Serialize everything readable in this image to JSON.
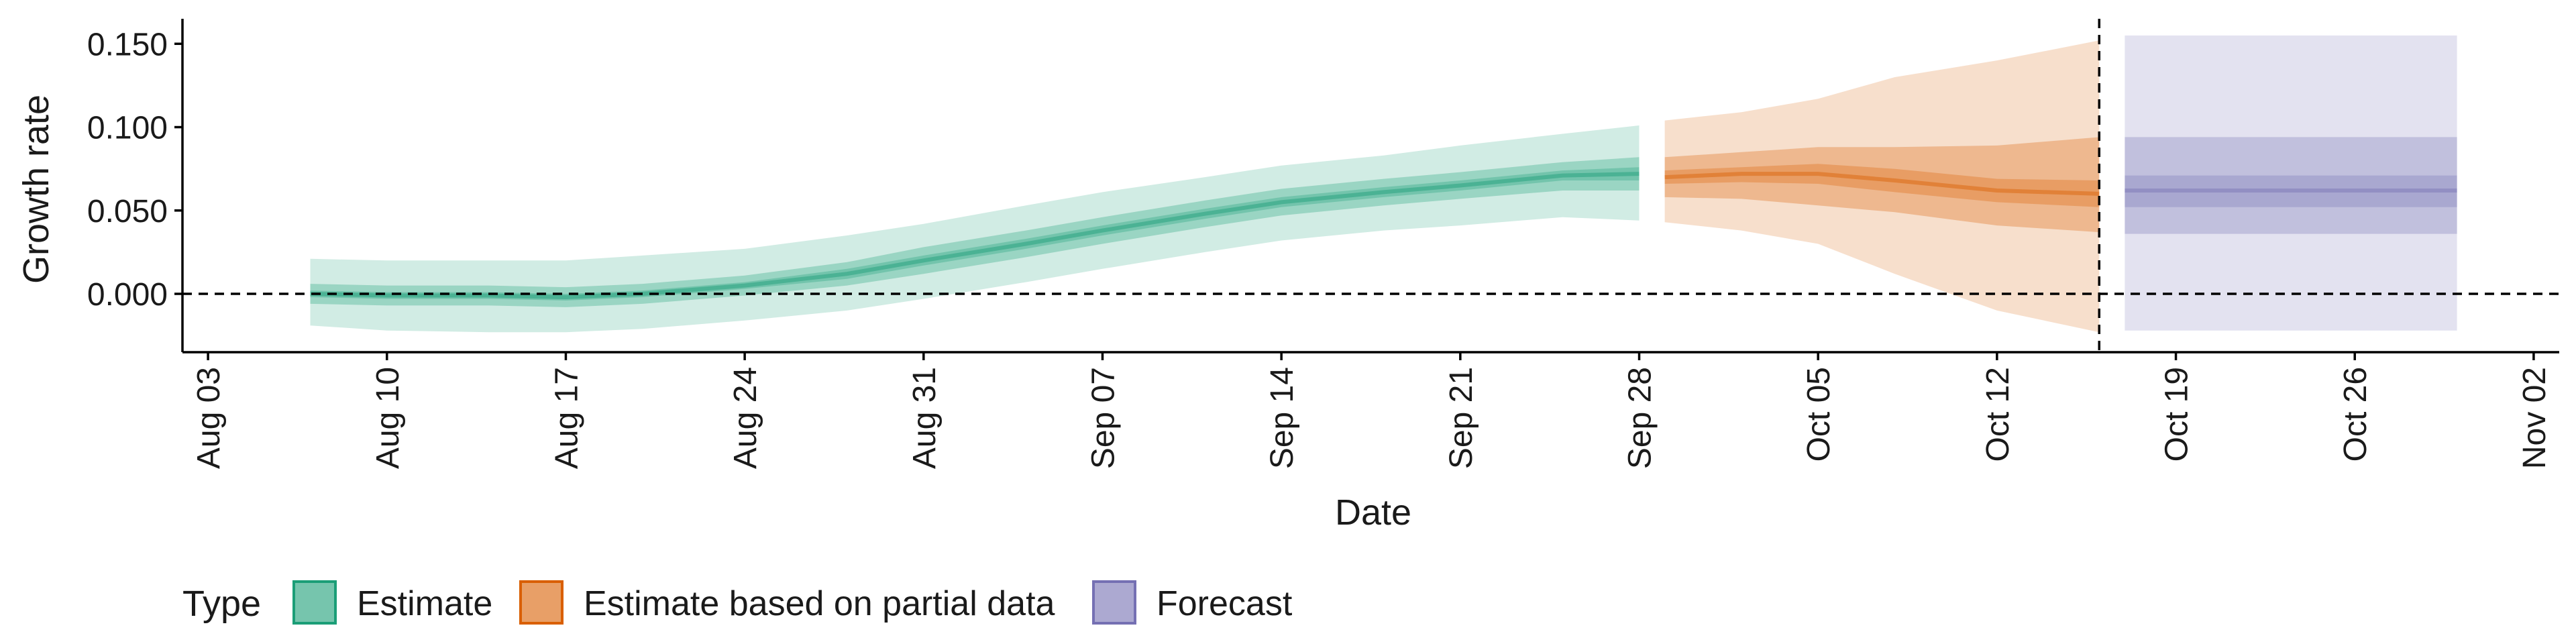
{
  "chart_data": {
    "type": "area",
    "xlabel": "Date",
    "ylabel": "Growth rate",
    "x_range": [
      "2020-08-02",
      "2020-11-03"
    ],
    "ylim": [
      -0.035,
      0.165
    ],
    "y_ticks": [
      0.0,
      0.05,
      0.1,
      0.15
    ],
    "y_tick_labels": [
      "0.000",
      "0.050",
      "0.100",
      "0.150"
    ],
    "x_ticks": [
      "2020-08-03",
      "2020-08-10",
      "2020-08-17",
      "2020-08-24",
      "2020-08-31",
      "2020-09-07",
      "2020-09-14",
      "2020-09-21",
      "2020-09-28",
      "2020-10-05",
      "2020-10-12",
      "2020-10-19",
      "2020-10-26",
      "2020-11-02"
    ],
    "x_tick_labels": [
      "Aug 03",
      "Aug 10",
      "Aug 17",
      "Aug 24",
      "Aug 31",
      "Sep 07",
      "Sep 14",
      "Sep 21",
      "Sep 28",
      "Oct 05",
      "Oct 12",
      "Oct 19",
      "Oct 26",
      "Nov 02"
    ],
    "reference_lines": {
      "horizontal_y": 0.0,
      "vertical_date": "2020-10-16"
    },
    "grid": false,
    "legend": {
      "title": "Type",
      "position": "bottom",
      "entries": [
        "Estimate",
        "Estimate based on partial data",
        "Forecast"
      ]
    },
    "series": [
      {
        "name": "Estimate",
        "color": "#1b9e77",
        "points": [
          {
            "date": "2020-08-07",
            "median": 0.0,
            "inner": [
              -0.002,
              0.002
            ],
            "mid": [
              -0.006,
              0.006
            ],
            "outer": [
              -0.019,
              0.021
            ]
          },
          {
            "date": "2020-08-10",
            "median": -0.001,
            "inner": [
              -0.003,
              0.001
            ],
            "mid": [
              -0.007,
              0.005
            ],
            "outer": [
              -0.022,
              0.02
            ]
          },
          {
            "date": "2020-08-14",
            "median": -0.001,
            "inner": [
              -0.003,
              0.001
            ],
            "mid": [
              -0.007,
              0.005
            ],
            "outer": [
              -0.023,
              0.02
            ]
          },
          {
            "date": "2020-08-17",
            "median": -0.002,
            "inner": [
              -0.004,
              0.0
            ],
            "mid": [
              -0.008,
              0.004
            ],
            "outer": [
              -0.023,
              0.02
            ]
          },
          {
            "date": "2020-08-20",
            "median": 0.0,
            "inner": [
              -0.002,
              0.002
            ],
            "mid": [
              -0.006,
              0.006
            ],
            "outer": [
              -0.021,
              0.023
            ]
          },
          {
            "date": "2020-08-24",
            "median": 0.005,
            "inner": [
              0.003,
              0.007
            ],
            "mid": [
              -0.001,
              0.011
            ],
            "outer": [
              -0.016,
              0.027
            ]
          },
          {
            "date": "2020-08-28",
            "median": 0.012,
            "inner": [
              0.009,
              0.015
            ],
            "mid": [
              0.005,
              0.019
            ],
            "outer": [
              -0.01,
              0.035
            ]
          },
          {
            "date": "2020-08-31",
            "median": 0.02,
            "inner": [
              0.017,
              0.023
            ],
            "mid": [
              0.012,
              0.028
            ],
            "outer": [
              -0.003,
              0.042
            ]
          },
          {
            "date": "2020-09-04",
            "median": 0.03,
            "inner": [
              0.027,
              0.033
            ],
            "mid": [
              0.022,
              0.038
            ],
            "outer": [
              0.007,
              0.053
            ]
          },
          {
            "date": "2020-09-07",
            "median": 0.038,
            "inner": [
              0.035,
              0.041
            ],
            "mid": [
              0.03,
              0.046
            ],
            "outer": [
              0.015,
              0.061
            ]
          },
          {
            "date": "2020-09-11",
            "median": 0.048,
            "inner": [
              0.045,
              0.051
            ],
            "mid": [
              0.04,
              0.056
            ],
            "outer": [
              0.025,
              0.07
            ]
          },
          {
            "date": "2020-09-14",
            "median": 0.055,
            "inner": [
              0.052,
              0.058
            ],
            "mid": [
              0.047,
              0.063
            ],
            "outer": [
              0.032,
              0.077
            ]
          },
          {
            "date": "2020-09-18",
            "median": 0.061,
            "inner": [
              0.058,
              0.064
            ],
            "mid": [
              0.053,
              0.069
            ],
            "outer": [
              0.038,
              0.083
            ]
          },
          {
            "date": "2020-09-21",
            "median": 0.065,
            "inner": [
              0.062,
              0.068
            ],
            "mid": [
              0.057,
              0.073
            ],
            "outer": [
              0.041,
              0.089
            ]
          },
          {
            "date": "2020-09-25",
            "median": 0.071,
            "inner": [
              0.068,
              0.074
            ],
            "mid": [
              0.062,
              0.079
            ],
            "outer": [
              0.046,
              0.096
            ]
          },
          {
            "date": "2020-09-28",
            "median": 0.072,
            "inner": [
              0.068,
              0.076
            ],
            "mid": [
              0.062,
              0.082
            ],
            "outer": [
              0.044,
              0.101
            ]
          }
        ]
      },
      {
        "name": "Estimate based on partial data",
        "color": "#d95f02",
        "points": [
          {
            "date": "2020-09-29",
            "median": 0.07,
            "inner": [
              0.066,
              0.074
            ],
            "mid": [
              0.058,
              0.082
            ],
            "outer": [
              0.043,
              0.104
            ]
          },
          {
            "date": "2020-10-02",
            "median": 0.072,
            "inner": [
              0.067,
              0.076
            ],
            "mid": [
              0.057,
              0.085
            ],
            "outer": [
              0.038,
              0.109
            ]
          },
          {
            "date": "2020-10-05",
            "median": 0.072,
            "inner": [
              0.066,
              0.078
            ],
            "mid": [
              0.053,
              0.088
            ],
            "outer": [
              0.03,
              0.117
            ]
          },
          {
            "date": "2020-10-08",
            "median": 0.068,
            "inner": [
              0.061,
              0.075
            ],
            "mid": [
              0.049,
              0.088
            ],
            "outer": [
              0.012,
              0.13
            ]
          },
          {
            "date": "2020-10-12",
            "median": 0.062,
            "inner": [
              0.055,
              0.069
            ],
            "mid": [
              0.041,
              0.089
            ],
            "outer": [
              -0.01,
              0.14
            ]
          },
          {
            "date": "2020-10-16",
            "median": 0.06,
            "inner": [
              0.052,
              0.068
            ],
            "mid": [
              0.037,
              0.094
            ],
            "outer": [
              -0.023,
              0.152
            ]
          }
        ]
      },
      {
        "name": "Forecast",
        "color": "#7570b3",
        "points": [
          {
            "date": "2020-10-17",
            "median": 0.062,
            "inner": [
              0.052,
              0.071
            ],
            "mid": [
              0.036,
              0.094
            ],
            "outer": [
              -0.022,
              0.155
            ]
          },
          {
            "date": "2020-10-30",
            "median": 0.062,
            "inner": [
              0.052,
              0.071
            ],
            "mid": [
              0.036,
              0.094
            ],
            "outer": [
              -0.022,
              0.155
            ]
          }
        ]
      }
    ]
  }
}
